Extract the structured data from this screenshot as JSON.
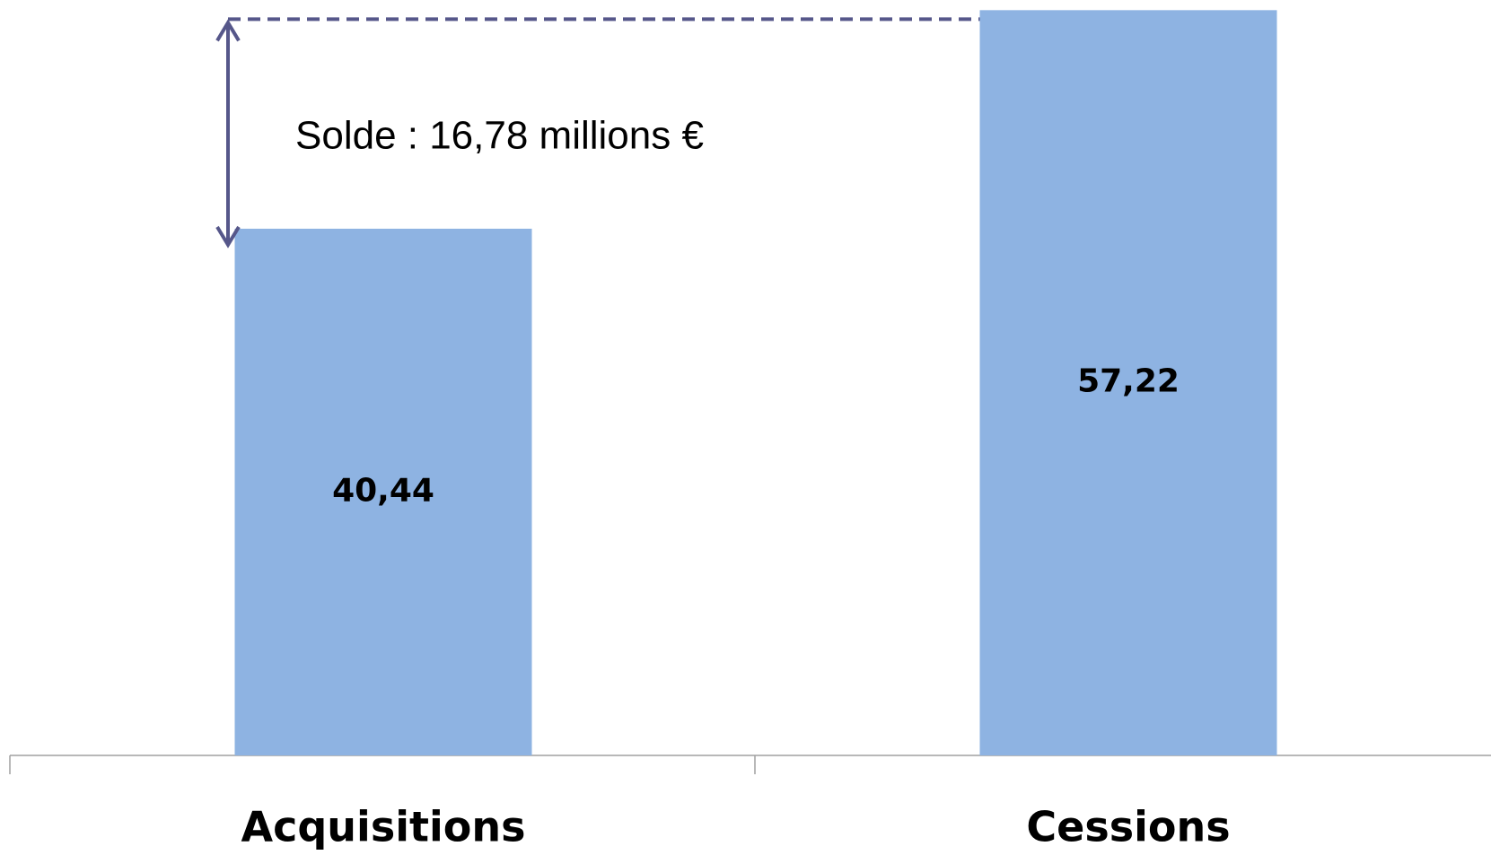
{
  "chart_data": {
    "type": "bar",
    "annotation": "Solde : 16,78 millions €",
    "categories": [
      "Acquisitions",
      "Cessions"
    ],
    "values": [
      40.44,
      57.22
    ],
    "value_labels": [
      "40,44",
      "57,22"
    ],
    "color": "#8eb3e2",
    "ylim": [
      0,
      58
    ]
  }
}
